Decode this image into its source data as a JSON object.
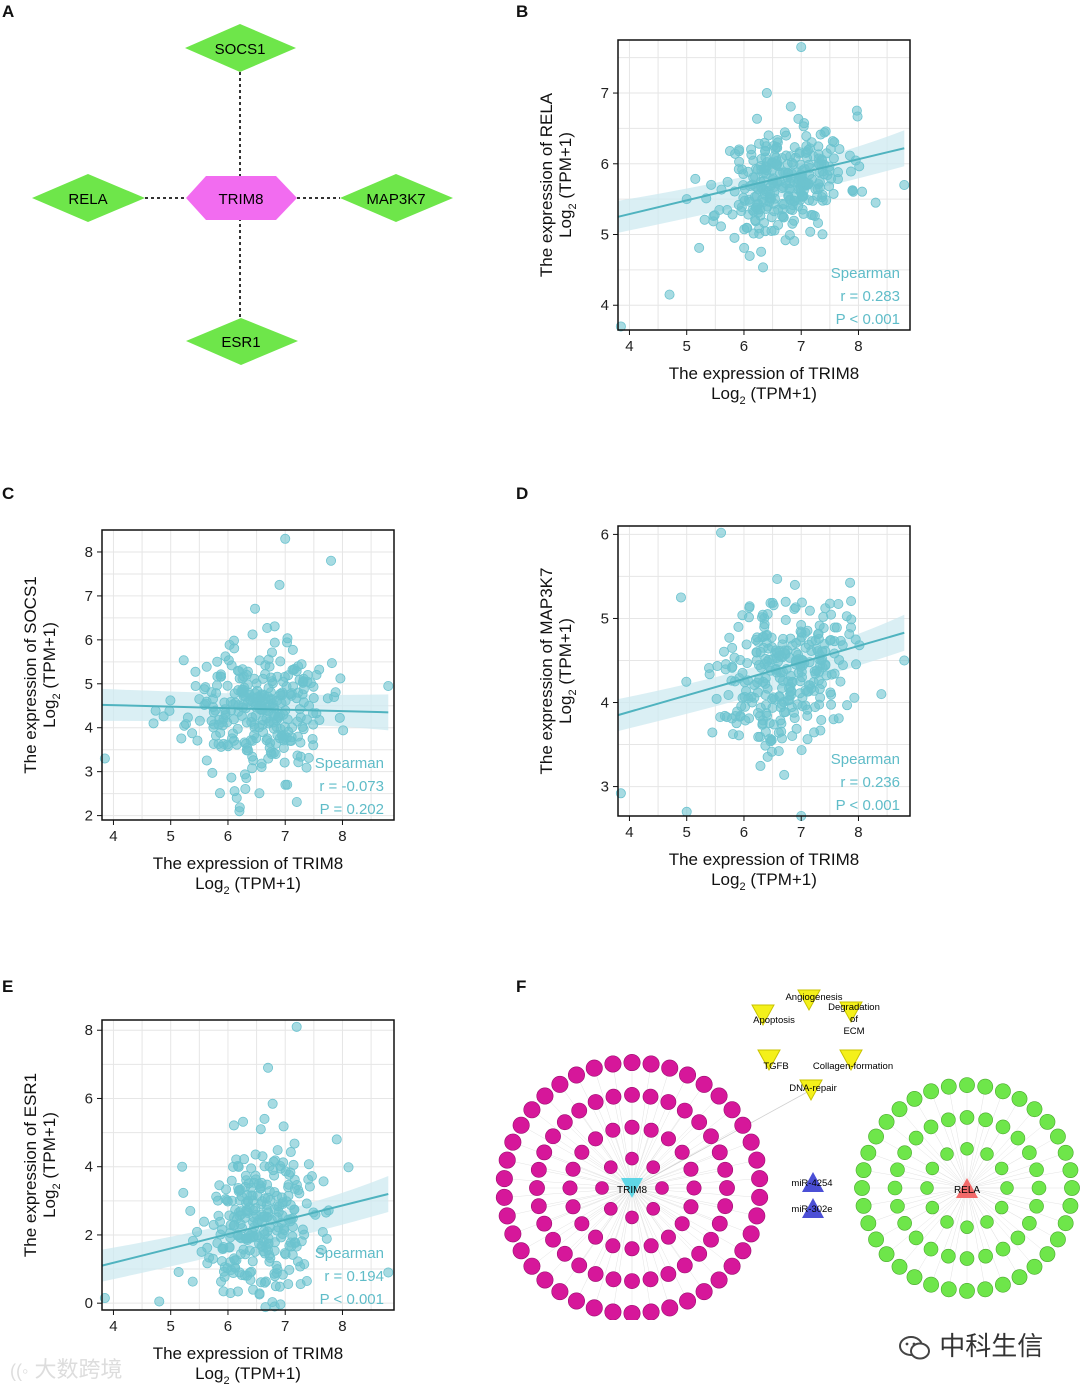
{
  "panel_labels": [
    "A",
    "B",
    "C",
    "D",
    "E",
    "F"
  ],
  "network_a": {
    "center": "TRIM8",
    "nodes": [
      "SOCS1",
      "RELA",
      "MAP3K7",
      "ESR1"
    ],
    "center_color": "#f26cf0",
    "node_color": "#6ee64a"
  },
  "colors": {
    "point": "#6cc3cf",
    "line": "#4fb3bf",
    "band": "#cdeaf0",
    "stat_text": "#5fbcc8"
  },
  "chart_data": [
    {
      "panel": "B",
      "type": "scatter",
      "xlabel": "The expression of TRIM8",
      "xlabel2_pre": "Log",
      "xlabel2_sub": "2",
      "xlabel2_post": " (TPM+1)",
      "ylabel": "The expression of RELA",
      "ylabel2_pre": "Log",
      "ylabel2_sub": "2",
      "ylabel2_post": " (TPM+1)",
      "xlim": [
        3.8,
        8.9
      ],
      "ylim": [
        3.65,
        7.75
      ],
      "xticks": [
        4,
        5,
        6,
        7,
        8
      ],
      "yticks": [
        4,
        5,
        6,
        7
      ],
      "fit": [
        [
          3.8,
          5.25
        ],
        [
          8.8,
          6.22
        ]
      ],
      "stats": [
        "Spearman",
        "r = 0.283",
        "P < 0.001"
      ],
      "cloud": {
        "cx": 6.7,
        "cy": 5.75,
        "sx": 0.55,
        "sy": 0.38,
        "n": 300,
        "seed": 11
      },
      "outliers": [
        [
          3.85,
          3.7
        ],
        [
          4.7,
          4.15
        ],
        [
          7.0,
          7.65
        ],
        [
          8.8,
          5.7
        ],
        [
          6.4,
          7.0
        ],
        [
          8.3,
          5.45
        ],
        [
          5.0,
          5.5
        ]
      ]
    },
    {
      "panel": "C",
      "type": "scatter",
      "xlabel": "The expression of TRIM8",
      "xlabel2_pre": "Log",
      "xlabel2_sub": "2",
      "xlabel2_post": " (TPM+1)",
      "ylabel": "The expression of SOCS1",
      "ylabel2_pre": "Log",
      "ylabel2_sub": "2",
      "ylabel2_post": " (TPM+1)",
      "xlim": [
        3.8,
        8.9
      ],
      "ylim": [
        1.9,
        8.5
      ],
      "xticks": [
        4,
        5,
        6,
        7,
        8
      ],
      "yticks": [
        2,
        3,
        4,
        5,
        6,
        7,
        8
      ],
      "fit": [
        [
          3.8,
          4.52
        ],
        [
          8.8,
          4.35
        ]
      ],
      "stats": [
        "Spearman",
        "r = -0.073",
        "P = 0.202"
      ],
      "cloud": {
        "cx": 6.5,
        "cy": 4.4,
        "sx": 0.6,
        "sy": 0.75,
        "n": 300,
        "seed": 23
      },
      "outliers": [
        [
          3.85,
          3.3
        ],
        [
          7.0,
          8.3
        ],
        [
          7.8,
          7.8
        ],
        [
          8.8,
          4.95
        ],
        [
          4.7,
          4.1
        ],
        [
          6.9,
          7.25
        ],
        [
          6.2,
          2.1
        ]
      ]
    },
    {
      "panel": "D",
      "type": "scatter",
      "xlabel": "The expression of TRIM8",
      "xlabel2_pre": "Log",
      "xlabel2_sub": "2",
      "xlabel2_post": " (TPM+1)",
      "ylabel": "The expression of MAP3K7",
      "ylabel2_pre": "Log",
      "ylabel2_sub": "2",
      "ylabel2_post": " (TPM+1)",
      "xlim": [
        3.8,
        8.9
      ],
      "ylim": [
        2.65,
        6.1
      ],
      "xticks": [
        4,
        5,
        6,
        7,
        8
      ],
      "yticks": [
        3,
        4,
        5,
        6
      ],
      "fit": [
        [
          3.8,
          3.85
        ],
        [
          8.8,
          4.83
        ]
      ],
      "stats": [
        "Spearman",
        "r = 0.236",
        "P < 0.001"
      ],
      "cloud": {
        "cx": 6.7,
        "cy": 4.4,
        "sx": 0.55,
        "sy": 0.45,
        "n": 300,
        "seed": 37
      },
      "outliers": [
        [
          3.85,
          2.92
        ],
        [
          5.6,
          6.02
        ],
        [
          8.8,
          4.5
        ],
        [
          5.0,
          2.7
        ],
        [
          7.0,
          2.65
        ],
        [
          4.9,
          5.25
        ],
        [
          8.4,
          4.1
        ]
      ]
    },
    {
      "panel": "E",
      "type": "scatter",
      "xlabel": "The expression of TRIM8",
      "xlabel2_pre": "Log",
      "xlabel2_sub": "2",
      "xlabel2_post": " (TPM+1)",
      "ylabel": "The expression of ESR1",
      "ylabel2_pre": "Log",
      "ylabel2_sub": "2",
      "ylabel2_post": " (TPM+1)",
      "xlim": [
        3.8,
        8.9
      ],
      "ylim": [
        -0.2,
        8.3
      ],
      "xticks": [
        4,
        5,
        6,
        7,
        8
      ],
      "yticks": [
        0,
        2,
        4,
        6,
        8
      ],
      "fit": [
        [
          3.8,
          1.1
        ],
        [
          8.8,
          3.2
        ]
      ],
      "stats": [
        "Spearman",
        "r = 0.194",
        "P < 0.001"
      ],
      "cloud": {
        "cx": 6.6,
        "cy": 2.2,
        "sx": 0.55,
        "sy": 1.3,
        "n": 300,
        "seed": 53
      },
      "outliers": [
        [
          3.85,
          0.15
        ],
        [
          7.2,
          8.1
        ],
        [
          6.7,
          6.9
        ],
        [
          8.8,
          0.9
        ],
        [
          4.8,
          0.05
        ],
        [
          5.2,
          4.0
        ],
        [
          7.9,
          4.8
        ]
      ]
    }
  ],
  "network_f": {
    "trim8_label": "TRIM8",
    "rela_label": "RELA",
    "pathways": [
      "Angiogenesis",
      "Apoptosis",
      "Degradation of ECM",
      "TGFB",
      "Collagen-formation",
      "DNA-repair"
    ],
    "mirnas_shared": [
      "miR-4254",
      "miR-302e"
    ],
    "magenta": "#d6179a",
    "green": "#6ee64a",
    "yellow": "#f4f01a",
    "blue": "#4b4fd6",
    "cyan": "#5fd6e6",
    "red": "#f26a6a"
  },
  "watermarks": {
    "right": "中科生信",
    "left": "大数跨境"
  }
}
